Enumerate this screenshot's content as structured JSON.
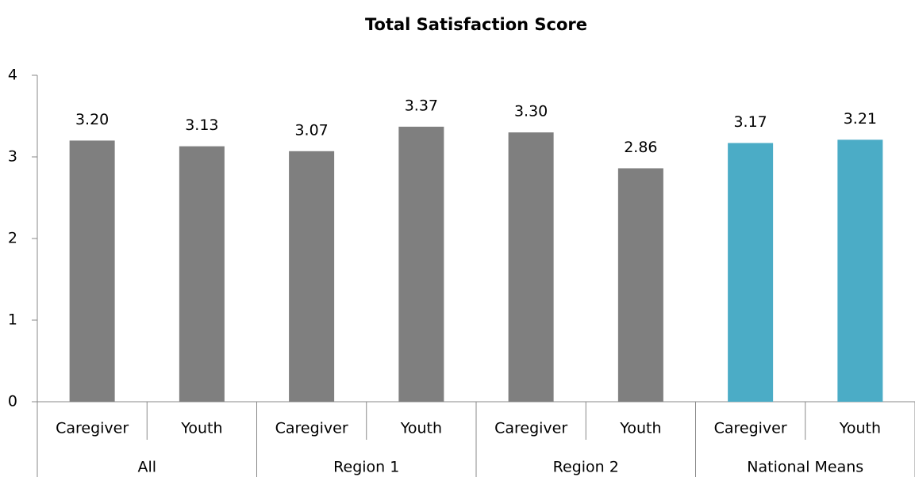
{
  "chart_data": {
    "type": "bar",
    "title": "Total Satisfaction Score",
    "categories": [
      "Caregiver",
      "Youth",
      "Caregiver",
      "Youth",
      "Caregiver",
      "Youth",
      "Caregiver",
      "Youth"
    ],
    "groups": [
      "All",
      "Region 1",
      "Region 2",
      "National Means"
    ],
    "values": [
      3.2,
      3.13,
      3.07,
      3.37,
      3.3,
      2.86,
      3.17,
      3.21
    ],
    "value_labels": [
      "3.20",
      "3.13",
      "3.07",
      "3.37",
      "3.30",
      "2.86",
      "3.17",
      "3.21"
    ],
    "colors": [
      "#7f7f7f",
      "#7f7f7f",
      "#7f7f7f",
      "#7f7f7f",
      "#7f7f7f",
      "#7f7f7f",
      "#4bacc6",
      "#4bacc6"
    ],
    "ylim": [
      0,
      4
    ],
    "yticks": [
      0,
      1,
      2,
      3,
      4
    ],
    "grid": false
  }
}
